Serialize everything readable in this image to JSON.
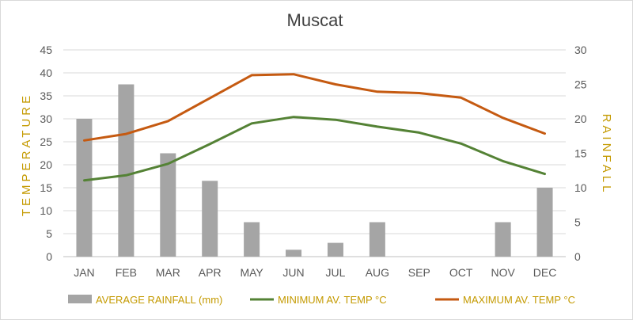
{
  "chart_data": {
    "type": "bar+line",
    "title": "Muscat",
    "categories": [
      "JAN",
      "FEB",
      "MAR",
      "APR",
      "MAY",
      "JUN",
      "JUL",
      "AUG",
      "SEP",
      "OCT",
      "NOV",
      "DEC"
    ],
    "y_left": {
      "label": "TEMPERATURE",
      "min": 0,
      "max": 45,
      "step": 5,
      "ticks": [
        "0",
        "5",
        "10",
        "15",
        "20",
        "25",
        "30",
        "35",
        "40",
        "45"
      ]
    },
    "y_right": {
      "label": "RAINFALL",
      "min": 0,
      "max": 30,
      "step": 5,
      "ticks": [
        "0",
        "5",
        "10",
        "15",
        "20",
        "25",
        "30"
      ]
    },
    "grid": true,
    "legend_position": "bottom",
    "series": [
      {
        "name": "AVERAGE RAINFALL (mm)",
        "kind": "bar",
        "axis": "right",
        "color": "#a5a5a5",
        "values": [
          20,
          25,
          15,
          11,
          5,
          1,
          2,
          5,
          0,
          0,
          5,
          10
        ]
      },
      {
        "name": "MINIMUM AV. TEMP °C",
        "kind": "line",
        "axis": "left",
        "color": "#548235",
        "values": [
          16.6,
          17.7,
          20.2,
          24.5,
          29.0,
          30.4,
          29.8,
          28.3,
          27.0,
          24.6,
          20.8,
          18.0
        ]
      },
      {
        "name": "MAXIMUM AV. TEMP °C",
        "kind": "line",
        "axis": "left",
        "color": "#c55a11",
        "values": [
          25.3,
          26.7,
          29.5,
          34.5,
          39.5,
          39.7,
          37.5,
          35.9,
          35.6,
          34.6,
          30.2,
          26.8
        ]
      }
    ]
  }
}
